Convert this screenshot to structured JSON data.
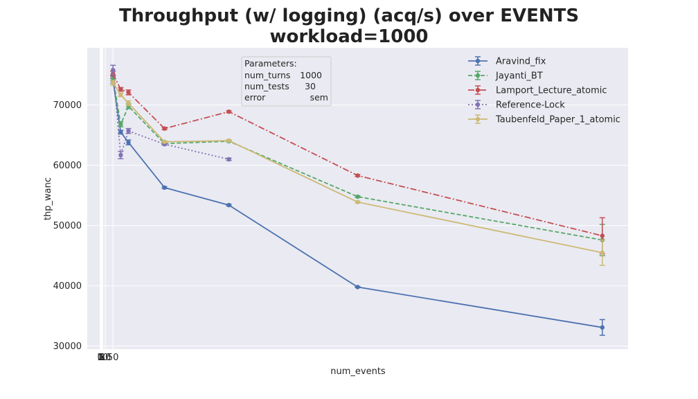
{
  "chart_data": {
    "type": "line",
    "title_line1": "Throughput (w/ logging) (acq/s) over EVENTS",
    "title_line2": "workload=1000",
    "xlabel": "num_events",
    "ylabel": "thp_wanc",
    "xlim": [
      -50,
      2050
    ],
    "ylim": [
      29500,
      79500
    ],
    "yticks": [
      30000,
      40000,
      50000,
      60000,
      70000
    ],
    "xticks": [
      0,
      2,
      5,
      8,
      10,
      20,
      50
    ],
    "xtick_labels": [
      "0",
      "2",
      "5",
      "8",
      "10",
      "20",
      "50"
    ],
    "grid": true,
    "legend_position": "top-right",
    "parameters": {
      "heading": "Parameters:",
      "rows": [
        {
          "key": "num_turns",
          "value": "1000"
        },
        {
          "key": "num_tests",
          "value": "30"
        },
        {
          "key": "error",
          "value": "sem"
        }
      ]
    },
    "series": [
      {
        "name": "Aravind_fix",
        "color": "#4c72b0",
        "dash": "solid",
        "x": [
          50,
          80,
          110,
          250,
          500,
          1000,
          1950
        ],
        "y": [
          74000,
          65500,
          63800,
          56300,
          53400,
          39800,
          33100
        ],
        "err": [
          400,
          300,
          400,
          150,
          150,
          100,
          1300
        ]
      },
      {
        "name": "Jayanti_BT",
        "color": "#55a868",
        "dash": "dashed",
        "x": [
          50,
          80,
          110,
          250,
          500,
          1000,
          1950
        ],
        "y": [
          74500,
          66800,
          69800,
          63600,
          64000,
          54800,
          47600
        ],
        "err": [
          400,
          400,
          400,
          150,
          150,
          150,
          2600
        ]
      },
      {
        "name": "Lamport_Lecture_atomic",
        "color": "#c44e52",
        "dash": "dashdot",
        "x": [
          50,
          80,
          110,
          250,
          500,
          1000,
          1950
        ],
        "y": [
          75200,
          72600,
          72100,
          66100,
          68900,
          58300,
          48300
        ],
        "err": [
          400,
          300,
          400,
          200,
          150,
          150,
          3000
        ]
      },
      {
        "name": "Reference-Lock",
        "color": "#8172b2",
        "dash": "dotted",
        "x": [
          50,
          80,
          110,
          250,
          500
        ],
        "y": [
          75800,
          61700,
          65700,
          63500,
          61000
        ],
        "err": [
          800,
          600,
          400,
          150,
          200
        ]
      },
      {
        "name": "Taubenfeld_Paper_1_atomic",
        "color": "#ccb974",
        "dash": "solid",
        "x": [
          50,
          80,
          110,
          250,
          500,
          1000,
          1950
        ],
        "y": [
          73700,
          71700,
          70300,
          63900,
          64100,
          53900,
          45500
        ],
        "err": [
          400,
          300,
          400,
          150,
          150,
          150,
          2100
        ]
      }
    ]
  }
}
